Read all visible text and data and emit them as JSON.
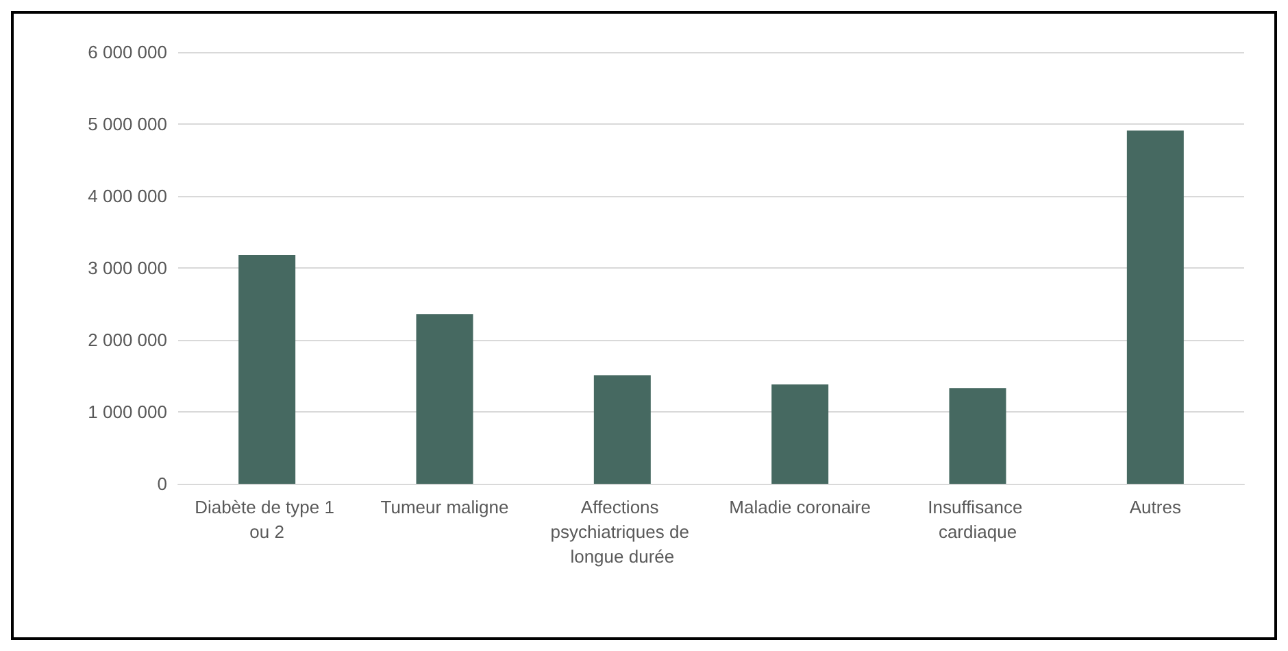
{
  "chart_data": {
    "type": "bar",
    "categories": [
      "Diabète de type 1 ou 2",
      "Tumeur maligne",
      "Affections psychiatriques de longue durée",
      "Maladie coronaire",
      "Insuffisance cardiaque",
      "Autres"
    ],
    "values": [
      3180000,
      2360000,
      1510000,
      1380000,
      1330000,
      4910000
    ],
    "color": "#466961",
    "ylim": [
      0,
      6000000
    ],
    "yticks": [
      {
        "value": 0,
        "label": "0"
      },
      {
        "value": 1000000,
        "label": "1 000 000"
      },
      {
        "value": 2000000,
        "label": "2 000 000"
      },
      {
        "value": 3000000,
        "label": "3 000 000"
      },
      {
        "value": 4000000,
        "label": "4 000 000"
      },
      {
        "value": 5000000,
        "label": "5 000 000"
      },
      {
        "value": 6000000,
        "label": "6 000 000"
      }
    ],
    "grid": "y"
  }
}
